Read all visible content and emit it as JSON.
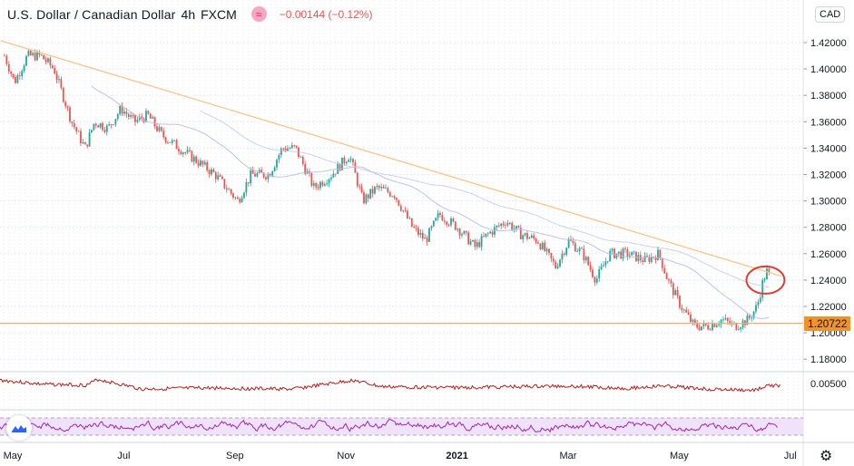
{
  "header": {
    "symbol": "U.S. Dollar / Canadian Dollar",
    "interval": "4h",
    "exchange": "FXCM",
    "change": "−0.00144 (−0.12%)"
  },
  "currency_button": "CAD",
  "last_price_label": "1.20722",
  "colors": {
    "up": "#26a69a",
    "down": "#ef5350",
    "trendline": "#f9c48a",
    "hline": "#f0b070",
    "ma": "#b6bde8",
    "annotation": "#e53935",
    "indicator1": "#b71c1c",
    "indicator2": "#9c27b0",
    "rsi_band": "#f1e2fb"
  },
  "chart_data": {
    "type": "candlestick",
    "title": "U.S. Dollar / Canadian Dollar · 4h · FXCM",
    "x_unit": "months since May 2020",
    "xlim": [
      -0.25,
      14.1
    ],
    "ylim": [
      1.1655,
      1.4465
    ],
    "y_ticks": [
      "1.18000",
      "1.20000",
      "1.22000",
      "1.24000",
      "1.26000",
      "1.28000",
      "1.30000",
      "1.32000",
      "1.34000",
      "1.36000",
      "1.38000",
      "1.40000",
      "1.42000"
    ],
    "x_ticks": [
      {
        "label": "May",
        "x": 0
      },
      {
        "label": "Jul",
        "x": 2
      },
      {
        "label": "Sep",
        "x": 4
      },
      {
        "label": "Nov",
        "x": 6
      },
      {
        "label": "2021",
        "x": 8
      },
      {
        "label": "Mar",
        "x": 10
      },
      {
        "label": "May",
        "x": 12
      },
      {
        "label": "Jul",
        "x": 14
      }
    ],
    "price_path": [
      [
        -0.18,
        1.41
      ],
      [
        0,
        1.39
      ],
      [
        0.23,
        1.41
      ],
      [
        0.47,
        1.41
      ],
      [
        0.71,
        1.4
      ],
      [
        0.87,
        1.38
      ],
      [
        1.03,
        1.36
      ],
      [
        1.27,
        1.34
      ],
      [
        1.44,
        1.36
      ],
      [
        1.68,
        1.355
      ],
      [
        1.92,
        1.37
      ],
      [
        2.16,
        1.36
      ],
      [
        2.4,
        1.365
      ],
      [
        2.65,
        1.35
      ],
      [
        2.97,
        1.34
      ],
      [
        3.29,
        1.33
      ],
      [
        3.61,
        1.32
      ],
      [
        4.02,
        1.3
      ],
      [
        4.26,
        1.32
      ],
      [
        4.58,
        1.32
      ],
      [
        4.82,
        1.34
      ],
      [
        5.06,
        1.34
      ],
      [
        5.39,
        1.31
      ],
      [
        5.71,
        1.32
      ],
      [
        6.03,
        1.335
      ],
      [
        6.27,
        1.3
      ],
      [
        6.52,
        1.31
      ],
      [
        6.84,
        1.305
      ],
      [
        7.16,
        1.28
      ],
      [
        7.4,
        1.27
      ],
      [
        7.65,
        1.29
      ],
      [
        7.97,
        1.28
      ],
      [
        8.29,
        1.265
      ],
      [
        8.53,
        1.275
      ],
      [
        8.85,
        1.285
      ],
      [
        9.1,
        1.275
      ],
      [
        9.42,
        1.27
      ],
      [
        9.74,
        1.25
      ],
      [
        9.98,
        1.27
      ],
      [
        10.23,
        1.26
      ],
      [
        10.47,
        1.24
      ],
      [
        10.71,
        1.26
      ],
      [
        11.03,
        1.26
      ],
      [
        11.35,
        1.255
      ],
      [
        11.6,
        1.26
      ],
      [
        11.76,
        1.24
      ],
      [
        12.0,
        1.22
      ],
      [
        12.24,
        1.205
      ],
      [
        12.48,
        1.205
      ],
      [
        12.73,
        1.21
      ],
      [
        12.97,
        1.205
      ],
      [
        13.21,
        1.21
      ],
      [
        13.37,
        1.22
      ],
      [
        13.48,
        1.24
      ],
      [
        13.56,
        1.248
      ],
      [
        13.61,
        1.238
      ]
    ],
    "trendline": [
      [
        -0.25,
        1.4215
      ],
      [
        13.8,
        1.243
      ]
    ],
    "horizontal_line": 1.20722,
    "annotation": {
      "type": "circle",
      "x": 13.52,
      "y": 1.24
    },
    "indicator1": {
      "axis_tick": "0.00500",
      "path": [
        [
          -0.25,
          0.0058
        ],
        [
          0.5,
          0.0048
        ],
        [
          1.3,
          0.0046
        ],
        [
          1.5,
          0.006
        ],
        [
          2.0,
          0.0045
        ],
        [
          2.3,
          0.0036
        ],
        [
          3.5,
          0.0039
        ],
        [
          5,
          0.0036
        ],
        [
          6.1,
          0.0058
        ],
        [
          6.6,
          0.0042
        ],
        [
          8,
          0.004
        ],
        [
          9,
          0.0042
        ],
        [
          10,
          0.0044
        ],
        [
          11,
          0.0038
        ],
        [
          11.7,
          0.0044
        ],
        [
          12.5,
          0.0036
        ],
        [
          13.3,
          0.0033
        ],
        [
          13.6,
          0.0045
        ]
      ]
    },
    "indicator2": {
      "band": [
        30,
        70
      ],
      "path_mean": 50
    }
  }
}
